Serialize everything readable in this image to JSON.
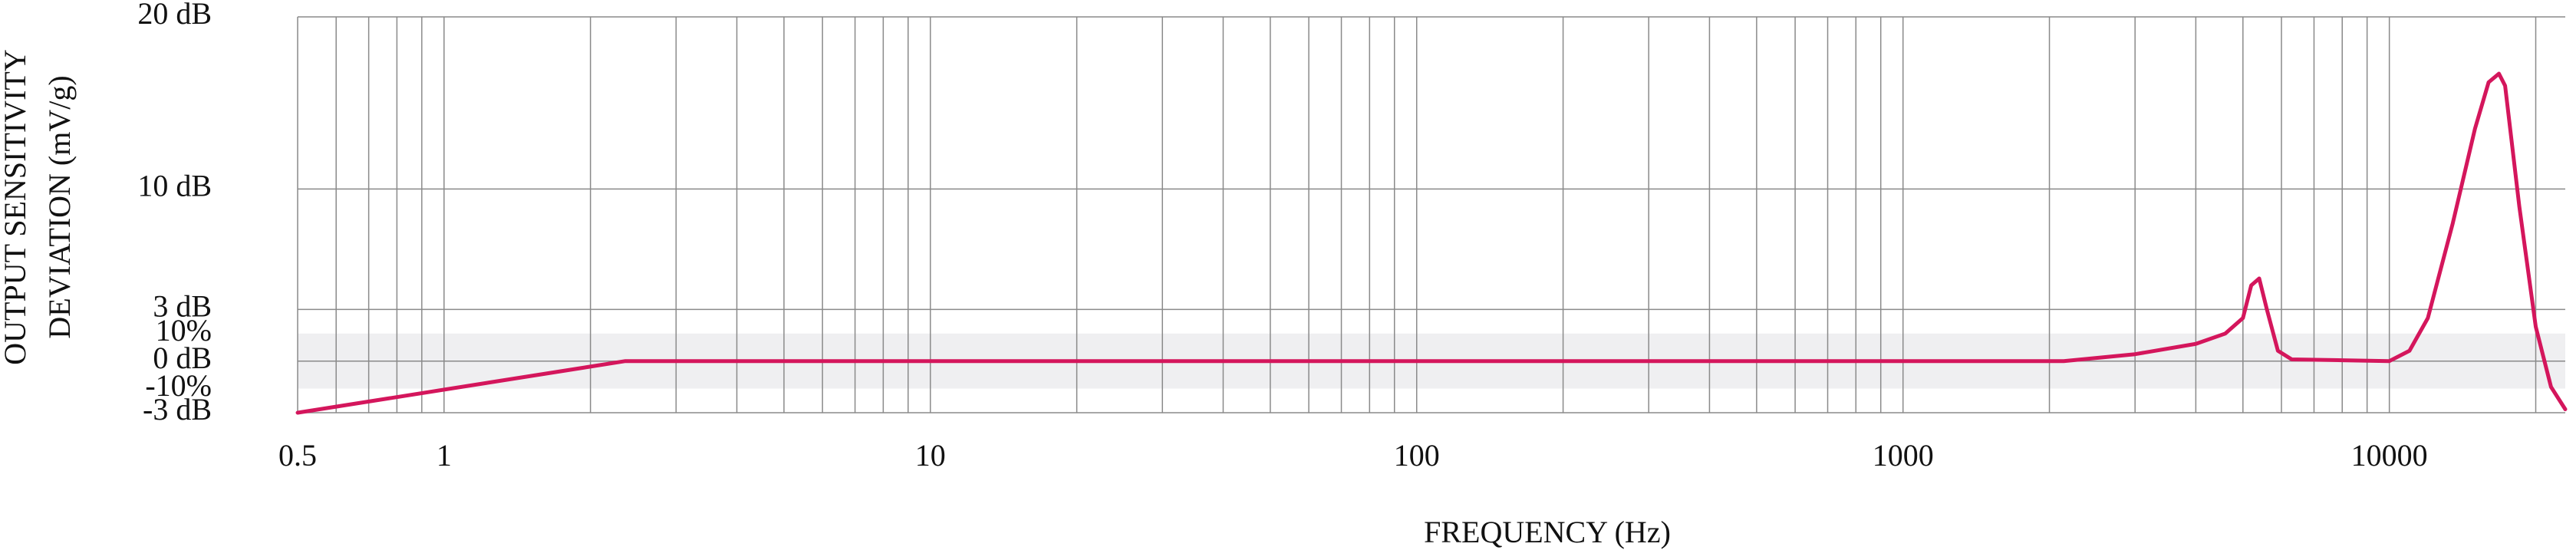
{
  "chart_data": {
    "type": "line",
    "xlabel": "FREQUENCY (Hz)",
    "ylabel": [
      "OUTPUT SENSITIVITY",
      "DEVIATION (mV/g)"
    ],
    "x_log_scale": true,
    "xlim": [
      0.5,
      23000
    ],
    "xticks": [
      0.5,
      1,
      10,
      100,
      1000,
      10000
    ],
    "x_minor_grid": [
      0.6,
      0.7,
      0.8,
      0.9,
      2,
      3,
      4,
      5,
      6,
      7,
      8,
      9,
      20,
      30,
      40,
      50,
      60,
      70,
      80,
      90,
      200,
      300,
      400,
      500,
      600,
      700,
      800,
      900,
      2000,
      3000,
      4000,
      5000,
      6000,
      7000,
      8000,
      9000,
      20000
    ],
    "ylim": [
      -3,
      20
    ],
    "yticks": [
      {
        "value": 20,
        "label": "20 dB"
      },
      {
        "value": 10,
        "label": "10 dB"
      },
      {
        "value": 3,
        "label": "3 dB"
      },
      {
        "value": 1.6,
        "label": "10%"
      },
      {
        "value": 0,
        "label": "0 dB"
      },
      {
        "value": -1.6,
        "label": "-10%"
      },
      {
        "value": -3,
        "label": "-3 dB"
      }
    ],
    "shaded_band": [
      -1.6,
      1.6
    ],
    "grid": true,
    "color": "#d4165c",
    "x": [
      0.5,
      2.36,
      2140,
      3000,
      4000,
      4600,
      5000,
      5200,
      5400,
      5600,
      5900,
      6300,
      8000,
      10000,
      11000,
      12000,
      13500,
      15000,
      16000,
      16800,
      17300,
      18500,
      20000,
      21500,
      23000
    ],
    "values": [
      -3,
      0,
      0,
      0.4,
      1,
      1.6,
      2.5,
      4.4,
      4.8,
      3,
      0.6,
      0.1,
      0.05,
      0,
      0.6,
      2.5,
      8,
      13.5,
      16.2,
      16.7,
      16,
      9,
      2,
      -1.5,
      -2.8
    ]
  }
}
